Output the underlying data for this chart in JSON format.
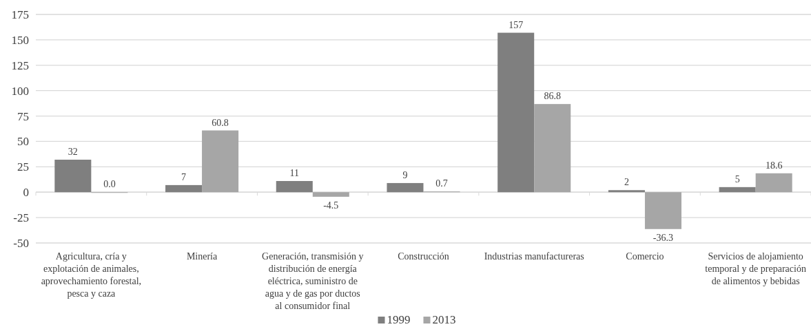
{
  "chart_data": {
    "type": "bar",
    "categories": [
      "Agricultura, cría y explotación de animales, aprovechamiento forestal, pesca y caza",
      "Minería",
      "Generación, transmisión y distribución de energía eléctrica, suministro de agua y de gas por ductos al consumidor final",
      "Construcción",
      "Industrias manufactureras",
      "Comercio",
      "Servicios de alojamiento temporal y de preparación de alimentos y bebidas"
    ],
    "series": [
      {
        "name": "1999",
        "color": "#7f7f7f",
        "values": [
          32,
          7,
          11,
          9,
          157,
          2,
          5
        ],
        "value_labels": [
          "32",
          "7",
          "11",
          "9",
          "157",
          "2",
          "5"
        ]
      },
      {
        "name": "2013",
        "color": "#a6a6a6",
        "values": [
          0.0,
          60.8,
          -4.5,
          0.7,
          86.8,
          -36.3,
          18.6
        ],
        "value_labels": [
          "0.0",
          "60.8",
          "-4.5",
          "0.7",
          "86.8",
          "-36.3",
          "18.6"
        ]
      }
    ],
    "ylim": [
      -50,
      175
    ],
    "yticks": [
      -50,
      -25,
      0,
      25,
      50,
      75,
      100,
      125,
      150,
      175
    ],
    "grid": "y",
    "legend": "bottom"
  }
}
